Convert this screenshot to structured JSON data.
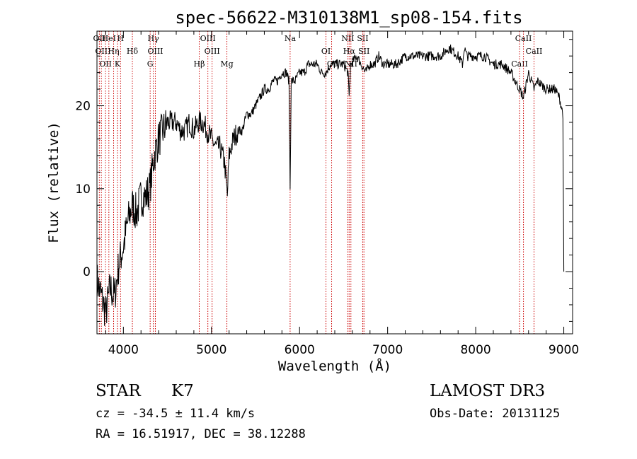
{
  "chart_data": {
    "type": "line",
    "title": "spec-56622-M310138M1_sp08-154.fits",
    "xlabel": "Wavelength (Å)",
    "ylabel": "Flux (relative)",
    "xlim": [
      3700,
      9100
    ],
    "ylim": [
      -7.5,
      29
    ],
    "xticks": [
      4000,
      5000,
      6000,
      7000,
      8000,
      9000
    ],
    "yticks": [
      0,
      10,
      20
    ],
    "grid": false,
    "series": [
      {
        "name": "spectrum",
        "color": "#000000",
        "x": [
          3700,
          3750,
          3800,
          3850,
          3900,
          3950,
          4000,
          4050,
          4100,
          4150,
          4200,
          4250,
          4300,
          4350,
          4400,
          4450,
          4500,
          4550,
          4600,
          4650,
          4700,
          4750,
          4800,
          4850,
          4900,
          4950,
          5000,
          5050,
          5100,
          5150,
          5180,
          5200,
          5250,
          5300,
          5350,
          5400,
          5450,
          5500,
          5550,
          5600,
          5650,
          5700,
          5750,
          5800,
          5850,
          5880,
          5893,
          5905,
          5950,
          6000,
          6050,
          6100,
          6150,
          6200,
          6250,
          6300,
          6350,
          6400,
          6450,
          6500,
          6550,
          6563,
          6580,
          6650,
          6700,
          6750,
          6800,
          6850,
          6900,
          6950,
          7000,
          7100,
          7200,
          7300,
          7400,
          7500,
          7600,
          7700,
          7800,
          7850,
          7870,
          7900,
          8000,
          8100,
          8200,
          8300,
          8400,
          8498,
          8542,
          8600,
          8662,
          8700,
          8800,
          8900,
          8950,
          8990,
          9000
        ],
        "y": [
          -1,
          -3,
          -5,
          -2,
          -3,
          1,
          3,
          6,
          8,
          7,
          9,
          9,
          10,
          14,
          16,
          17,
          18,
          18,
          18,
          17,
          17,
          18,
          17,
          18,
          18,
          17,
          16,
          15,
          15,
          13,
          9,
          14,
          16,
          17,
          17,
          19,
          19,
          20,
          21,
          22,
          22,
          23,
          23,
          24,
          24,
          23,
          10,
          23,
          23,
          24,
          24,
          25,
          25,
          25,
          24,
          24,
          25,
          25,
          25,
          25,
          24,
          21,
          25,
          26,
          25,
          24,
          25,
          25,
          26,
          25,
          25,
          25,
          26,
          26,
          26,
          26,
          26,
          27,
          26,
          25,
          27,
          26,
          26,
          26,
          25,
          25,
          24,
          22,
          21,
          24,
          22,
          23,
          22,
          22,
          21,
          19,
          0
        ]
      }
    ],
    "lines": [
      {
        "w": 3727,
        "label": "OII"
      },
      {
        "w": 3750,
        "label": "OII"
      },
      {
        "w": 3797,
        "label": "OII"
      },
      {
        "w": 3835,
        "label": "HeI"
      },
      {
        "w": 3889,
        "label": "Hη"
      },
      {
        "w": 3933,
        "label": "K"
      },
      {
        "w": 3968,
        "label": "H"
      },
      {
        "w": 4102,
        "label": "Hδ"
      },
      {
        "w": 4304,
        "label": "G"
      },
      {
        "w": 4340,
        "label": "Hγ"
      },
      {
        "w": 4363,
        "label": "OIII"
      },
      {
        "w": 4861,
        "label": "Hβ"
      },
      {
        "w": 4959,
        "label": "OIII"
      },
      {
        "w": 5007,
        "label": "OIII"
      },
      {
        "w": 5175,
        "label": "Mg"
      },
      {
        "w": 5893,
        "label": "Na"
      },
      {
        "w": 6300,
        "label": "OI"
      },
      {
        "w": 6364,
        "label": "OI"
      },
      {
        "w": 6548,
        "label": "NII"
      },
      {
        "w": 6563,
        "label": "Hα"
      },
      {
        "w": 6583,
        "label": "NII"
      },
      {
        "w": 6717,
        "label": "SII"
      },
      {
        "w": 6731,
        "label": "SII"
      },
      {
        "w": 8498,
        "label": "CaII"
      },
      {
        "w": 8542,
        "label": "CaII"
      },
      {
        "w": 8662,
        "label": "CaII"
      }
    ],
    "line_color": "#cc0000"
  },
  "footer": {
    "object_type": "STAR",
    "subclass": "K7",
    "survey": "LAMOST DR3",
    "cz": "cz = -34.5 ± 11.4 km/s",
    "obs_date": "Obs-Date: 20131125",
    "coords": "RA =  16.51917, DEC =  38.12288"
  }
}
